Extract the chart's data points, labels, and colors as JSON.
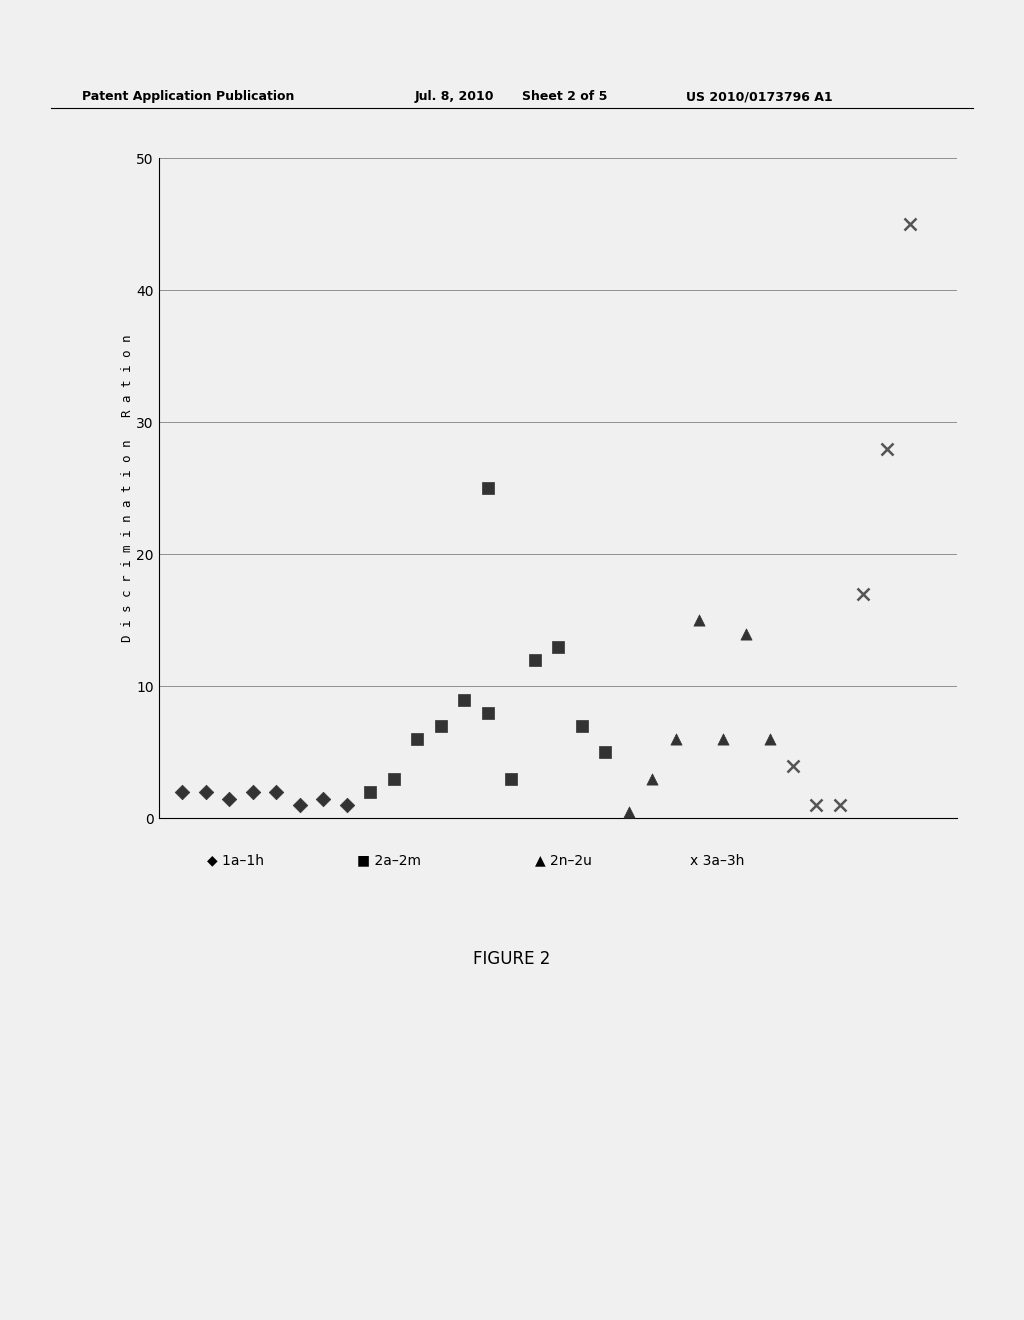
{
  "title": "FIGURE 2",
  "ylabel": "D i s c r i m i n a t i o n   R a t i o n",
  "ylim": [
    0,
    50
  ],
  "yticks": [
    0,
    10,
    20,
    30,
    40,
    50
  ],
  "background_color": "#f0f0f0",
  "series": {
    "1a-1h": {
      "x": [
        1,
        2,
        3,
        4,
        5,
        6,
        7,
        8
      ],
      "y": [
        2,
        2,
        1.5,
        2,
        2,
        1,
        1.5,
        1
      ],
      "marker": "D",
      "color": "#333333",
      "size": 55,
      "label": "1a-1h"
    },
    "2a-2m": {
      "x": [
        9,
        10,
        11,
        12,
        13,
        14,
        15,
        16,
        17,
        18,
        19,
        14
      ],
      "y": [
        2,
        3,
        6,
        7,
        9,
        8,
        3,
        12,
        13,
        7,
        5,
        25
      ],
      "marker": "s",
      "color": "#333333",
      "size": 65,
      "label": "2a-2m"
    },
    "2n-2u": {
      "x": [
        20,
        21,
        22,
        23,
        24,
        25,
        26
      ],
      "y": [
        0.5,
        3,
        6,
        15,
        6,
        14,
        6
      ],
      "marker": "^",
      "color": "#333333",
      "size": 65,
      "label": "2n-2u"
    },
    "3a-3h": {
      "x": [
        27,
        28,
        29,
        30,
        31,
        32
      ],
      "y": [
        4,
        1,
        1,
        17,
        28,
        45
      ],
      "marker": "x",
      "color": "#555555",
      "size": 75,
      "label": "3a-3h"
    }
  },
  "grid_y": [
    10,
    20,
    30,
    40,
    50
  ],
  "header_text": "Patent Application Publication",
  "header_date": "Jul. 8, 2010",
  "header_sheet": "Sheet 2 of 5",
  "header_patent": "US 2010/0173796 A1"
}
